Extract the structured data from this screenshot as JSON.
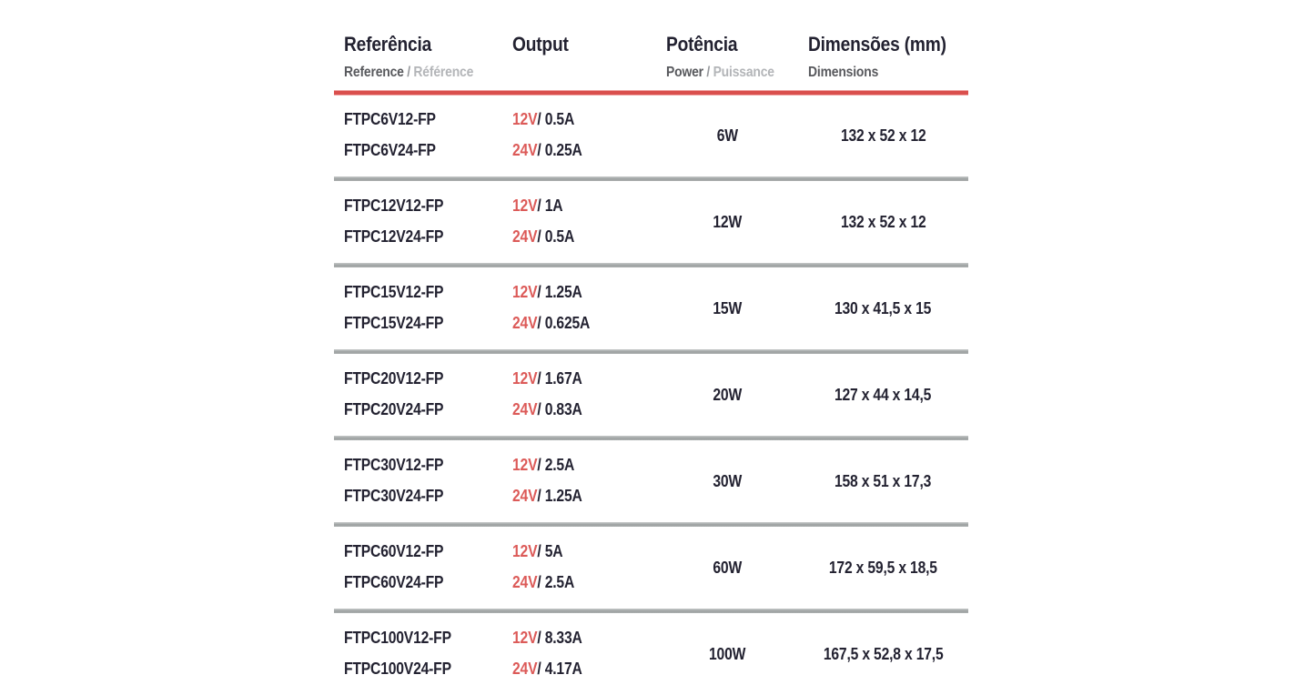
{
  "table": {
    "header": {
      "columns": [
        {
          "title": "Referência",
          "subtitle_primary": "Reference",
          "subtitle_separator": "/",
          "subtitle_secondary": "Référence"
        },
        {
          "title": "Output",
          "subtitle_primary": "",
          "subtitle_separator": "",
          "subtitle_secondary": ""
        },
        {
          "title": "Potência",
          "subtitle_primary": "Power",
          "subtitle_separator": "/",
          "subtitle_secondary": "Puissance"
        },
        {
          "title": "Dimensões (mm)",
          "subtitle_primary": "Dimensions",
          "subtitle_separator": "",
          "subtitle_secondary": ""
        }
      ]
    }
  },
  "rows": [
    {
      "refs": [
        "FTPC6V12-FP",
        "FTPC6V24-FP"
      ],
      "outputs": [
        {
          "voltage": "12V",
          "current": "/ 0.5A"
        },
        {
          "voltage": "24V",
          "current": "/ 0.25A"
        }
      ],
      "power": "6W",
      "dimensions": "132 x 52 x 12"
    },
    {
      "refs": [
        "FTPC12V12-FP",
        "FTPC12V24-FP"
      ],
      "outputs": [
        {
          "voltage": "12V",
          "current": "/ 1A"
        },
        {
          "voltage": "24V",
          "current": "/ 0.5A"
        }
      ],
      "power": "12W",
      "dimensions": "132 x 52 x 12"
    },
    {
      "refs": [
        "FTPC15V12-FP",
        "FTPC15V24-FP"
      ],
      "outputs": [
        {
          "voltage": "12V",
          "current": "/ 1.25A"
        },
        {
          "voltage": "24V",
          "current": "/ 0.625A"
        }
      ],
      "power": "15W",
      "dimensions": "130 x 41,5 x 15"
    },
    {
      "refs": [
        "FTPC20V12-FP",
        "FTPC20V24-FP"
      ],
      "outputs": [
        {
          "voltage": "12V",
          "current": "/ 1.67A"
        },
        {
          "voltage": "24V",
          "current": "/ 0.83A"
        }
      ],
      "power": "20W",
      "dimensions": "127 x 44 x 14,5"
    },
    {
      "refs": [
        "FTPC30V12-FP",
        "FTPC30V24-FP"
      ],
      "outputs": [
        {
          "voltage": "12V",
          "current": "/ 2.5A"
        },
        {
          "voltage": "24V",
          "current": "/ 1.25A"
        }
      ],
      "power": "30W",
      "dimensions": "158 x 51 x 17,3"
    },
    {
      "refs": [
        "FTPC60V12-FP",
        "FTPC60V24-FP"
      ],
      "outputs": [
        {
          "voltage": "12V",
          "current": "/ 5A"
        },
        {
          "voltage": "24V",
          "current": "/ 2.5A"
        }
      ],
      "power": "60W",
      "dimensions": "172 x 59,5 x 18,5"
    },
    {
      "refs": [
        "FTPC100V12-FP",
        "FTPC100V24-FP"
      ],
      "outputs": [
        {
          "voltage": "12V",
          "current": "/ 8.33A"
        },
        {
          "voltage": "24V",
          "current": "/ 4.17A"
        }
      ],
      "power": "100W",
      "dimensions": "167,5 x 52,8 x 17,5"
    }
  ],
  "colors": {
    "background": "#ffffff",
    "text_dark": "#232231",
    "accent_red": "#dc5a58",
    "rule_red": "#da4f4d",
    "subtitle_dark_gray": "#58595d",
    "subtitle_light_gray": "#b3b5b8",
    "separator_gray": "#a5a9a9"
  }
}
